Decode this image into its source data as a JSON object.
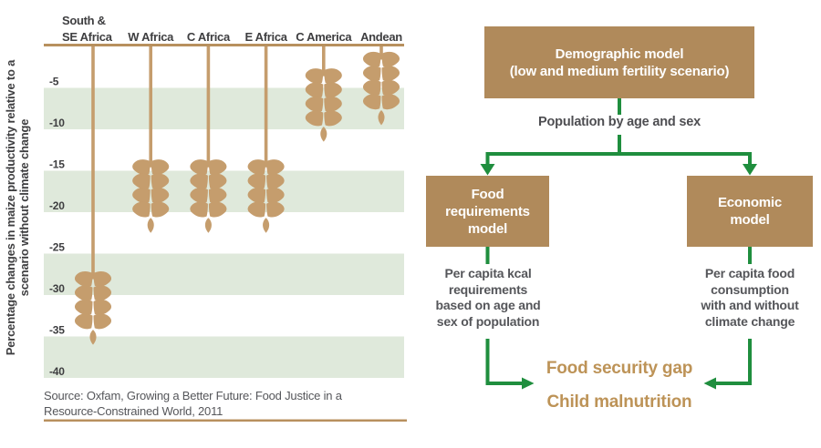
{
  "figure": {
    "source_lines": [
      "Source: Oxfam, Growing a Better Future: Food Justice in a",
      "Resource-Constrained World, 2011"
    ]
  },
  "chart_data": {
    "type": "bar",
    "subtype": "hanging-pictogram",
    "marker": "maize-ear",
    "categories": [
      "South &\nSE Africa",
      "W Africa",
      "C Africa",
      "E Africa",
      "C America",
      "Andean"
    ],
    "values": [
      -36,
      -22.5,
      -22.5,
      -22.5,
      -11.5,
      -9.5
    ],
    "unit": "%",
    "title": "",
    "xlabel": "",
    "ylabel_lines": [
      "Percentage changes in maize productivity relative to a",
      "scenario without climate change"
    ],
    "yticks": [
      -5,
      -10,
      -15,
      -20,
      -25,
      -30,
      -35,
      -40
    ],
    "ylim": [
      0,
      -41
    ],
    "shaded_bands": [
      [
        -5,
        -10
      ],
      [
        -15,
        -20
      ],
      [
        -25,
        -30
      ],
      [
        -35,
        -40
      ]
    ],
    "grid": false,
    "legend": false,
    "source": "Source: Oxfam, Growing a Better Future: Food Justice in a Resource-Constrained World, 2011"
  },
  "diagram": {
    "demographic_box": "Demographic model\n(low and medium fertility scenario)",
    "population_label": "Population by age and sex",
    "food_requirements_box": "Food\nrequirements\nmodel",
    "economic_box": "Economic\nmodel",
    "food_req_note": "Per capita kcal\nrequirements\nbased on age and\nsex of population",
    "economic_note": "Per capita food\nconsumption\nwith and without\nclimate change",
    "outcome_primary": "Food security gap",
    "outcome_secondary": "Child malnutrition"
  },
  "colors": {
    "wheat_tan": "#c59d6d",
    "axis_brown": "#b8905e",
    "box_brown": "#b08a5b",
    "band_green": "#dfe9db",
    "arrow_green": "#1f8e3e",
    "text_dark": "#3e3e40",
    "text_gray": "#55565a",
    "outcome_brown": "#bd9357"
  }
}
